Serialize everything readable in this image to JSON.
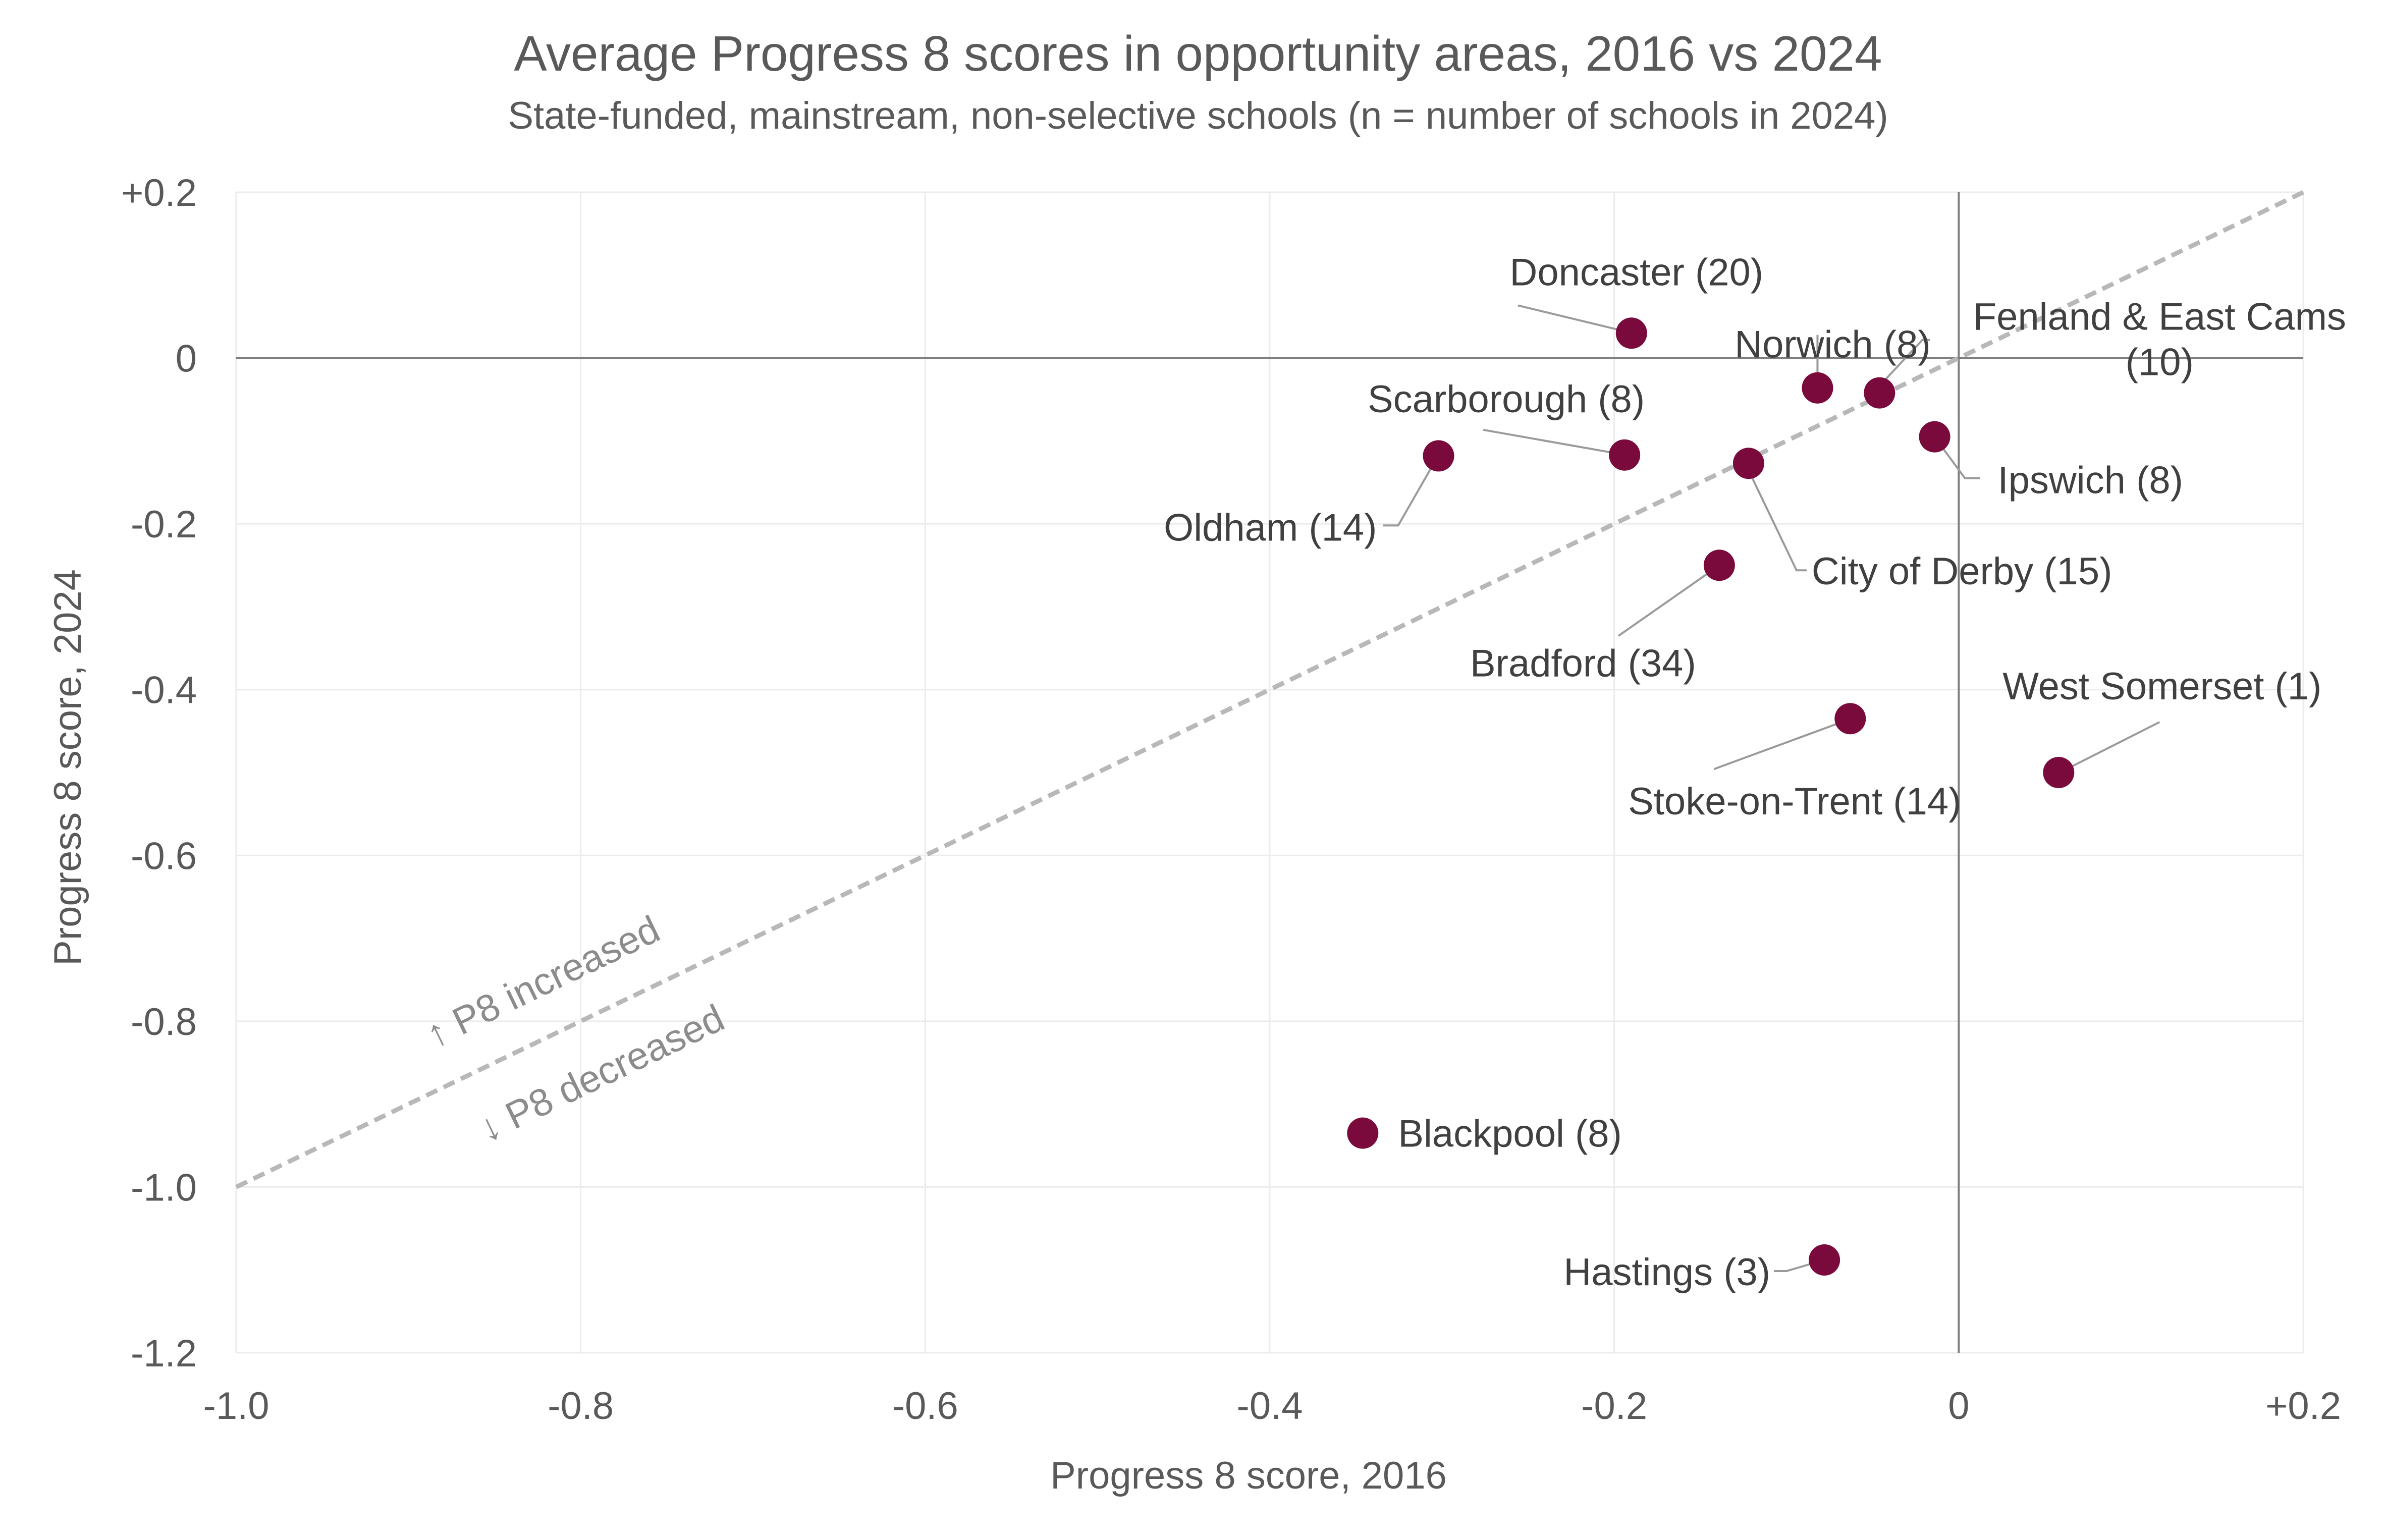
{
  "chart_data": {
    "type": "scatter",
    "title": "Average Progress 8 scores in opportunity areas, 2016 vs 2024",
    "subtitle": "State-funded, mainstream, non-selective schools (n = number of schools in 2024)",
    "xlabel": "Progress 8 score, 2016",
    "ylabel": "Progress 8 score, 2024",
    "xlim": [
      -1.0,
      0.2
    ],
    "ylim": [
      -1.2,
      0.2
    ],
    "x_ticks": [
      {
        "value": -1.0,
        "label": "-1.0"
      },
      {
        "value": -0.8,
        "label": "-0.8"
      },
      {
        "value": -0.6,
        "label": "-0.6"
      },
      {
        "value": -0.4,
        "label": "-0.4"
      },
      {
        "value": -0.2,
        "label": "-0.2"
      },
      {
        "value": 0,
        "label": "0"
      },
      {
        "value": 0.2,
        "label": "+0.2"
      }
    ],
    "y_ticks": [
      {
        "value": 0.2,
        "label": "+0.2"
      },
      {
        "value": 0,
        "label": "0"
      },
      {
        "value": -0.2,
        "label": "-0.2"
      },
      {
        "value": -0.4,
        "label": "-0.4"
      },
      {
        "value": -0.6,
        "label": "-0.6"
      },
      {
        "value": -0.8,
        "label": "-0.8"
      },
      {
        "value": -1.0,
        "label": "-1.0"
      },
      {
        "value": -1.2,
        "label": "-1.2"
      }
    ],
    "grid": true,
    "reference_line": "y = x",
    "region_labels": {
      "above": "↑ P8 increased",
      "below": "↓ P8 decreased"
    },
    "color": "#7a0a3c",
    "points": [
      {
        "label": "Doncaster (20)",
        "x": -0.19,
        "y": 0.03
      },
      {
        "label": "Norwich (8)",
        "x": -0.082,
        "y": -0.036
      },
      {
        "label": "Fenland & East Cams (10)",
        "x": -0.046,
        "y": -0.042
      },
      {
        "label": "Ipswich (8)",
        "x": -0.014,
        "y": -0.095
      },
      {
        "label": "Scarborough (8)",
        "x": -0.194,
        "y": -0.117
      },
      {
        "label": "Oldham (14)",
        "x": -0.302,
        "y": -0.118
      },
      {
        "label": "City of Derby (15)",
        "x": -0.122,
        "y": -0.127
      },
      {
        "label": "Bradford (34)",
        "x": -0.139,
        "y": -0.25
      },
      {
        "label": "Stoke-on-Trent (14)",
        "x": -0.063,
        "y": -0.435
      },
      {
        "label": "West Somerset (1)",
        "x": 0.058,
        "y": -0.5
      },
      {
        "label": "Blackpool (8)",
        "x": -0.346,
        "y": -0.935
      },
      {
        "label": "Hastings (3)",
        "x": -0.078,
        "y": -1.088
      }
    ]
  }
}
